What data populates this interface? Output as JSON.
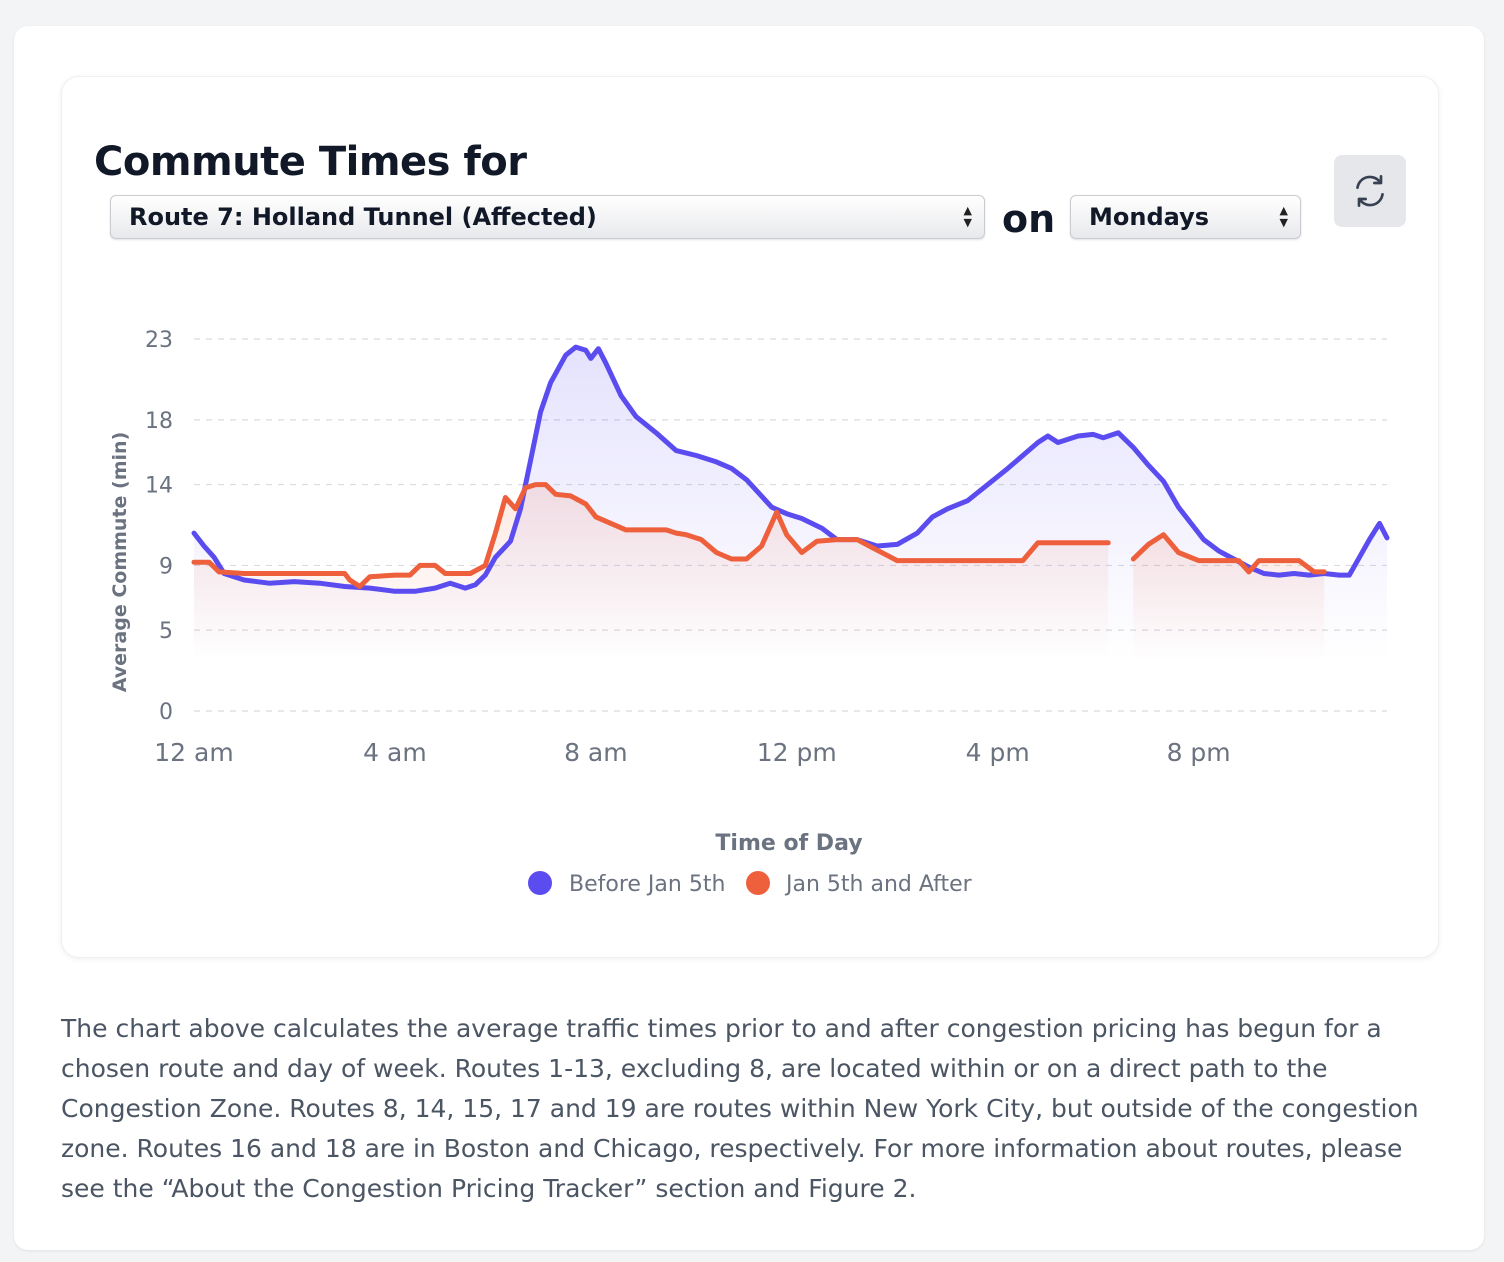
{
  "header": {
    "title": "Commute Times for",
    "route_select_value": "Route 7: Holland Tunnel (Affected)",
    "on_label": "on",
    "day_select_value": "Mondays",
    "refresh_icon": "refresh-icon"
  },
  "description": "The chart above calculates the average traffic times prior to and after congestion pricing has begun for a chosen route and day of week. Routes 1-13, excluding 8, are located within or on a direct path to the Congestion Zone. Routes 8, 14, 15, 17 and 19 are routes within New York City, but outside of the congestion zone. Routes 16 and 18 are in Boston and Chicago, respectively. For more information about routes, please see the “About the Congestion Pricing Tracker” section and Figure 2.",
  "chart_data": {
    "type": "line",
    "xlabel": "Time of Day",
    "ylabel": "Average Commute (min)",
    "x_unit": "hour of day",
    "xlim": [
      0,
      23.75
    ],
    "ylim": [
      0,
      23
    ],
    "y_ticks": [
      0,
      5,
      9,
      14,
      18,
      23
    ],
    "x_ticks": [
      {
        "value": 0,
        "label": "12 am"
      },
      {
        "value": 4,
        "label": "4 am"
      },
      {
        "value": 8,
        "label": "8 am"
      },
      {
        "value": 12,
        "label": "12 pm"
      },
      {
        "value": 16,
        "label": "4 pm"
      },
      {
        "value": 20,
        "label": "8 pm"
      }
    ],
    "grid": true,
    "legend_position": "bottom",
    "series": [
      {
        "name": "Before Jan 5th",
        "color": "#5b4cf0",
        "points": [
          [
            0,
            11.0
          ],
          [
            0.2,
            10.2
          ],
          [
            0.4,
            9.5
          ],
          [
            0.6,
            8.5
          ],
          [
            1.0,
            8.1
          ],
          [
            1.5,
            7.9
          ],
          [
            2.0,
            8.0
          ],
          [
            2.5,
            7.9
          ],
          [
            3.0,
            7.7
          ],
          [
            3.5,
            7.6
          ],
          [
            4.0,
            7.4
          ],
          [
            4.4,
            7.4
          ],
          [
            4.8,
            7.6
          ],
          [
            5.1,
            7.9
          ],
          [
            5.4,
            7.6
          ],
          [
            5.6,
            7.8
          ],
          [
            5.8,
            8.4
          ],
          [
            6.0,
            9.5
          ],
          [
            6.3,
            10.5
          ],
          [
            6.5,
            12.5
          ],
          [
            6.7,
            15.5
          ],
          [
            6.9,
            18.5
          ],
          [
            7.1,
            20.3
          ],
          [
            7.4,
            22.0
          ],
          [
            7.6,
            22.5
          ],
          [
            7.8,
            22.3
          ],
          [
            7.9,
            21.8
          ],
          [
            8.05,
            22.4
          ],
          [
            8.2,
            21.5
          ],
          [
            8.5,
            19.5
          ],
          [
            8.8,
            18.2
          ],
          [
            9.2,
            17.2
          ],
          [
            9.6,
            16.1
          ],
          [
            10.0,
            15.8
          ],
          [
            10.4,
            15.4
          ],
          [
            10.7,
            15.0
          ],
          [
            11.0,
            14.3
          ],
          [
            11.5,
            12.6
          ],
          [
            11.8,
            12.2
          ],
          [
            12.1,
            11.9
          ],
          [
            12.5,
            11.3
          ],
          [
            12.8,
            10.6
          ],
          [
            13.2,
            10.6
          ],
          [
            13.6,
            10.2
          ],
          [
            14.0,
            10.3
          ],
          [
            14.4,
            11.0
          ],
          [
            14.7,
            12.0
          ],
          [
            15.0,
            12.5
          ],
          [
            15.4,
            13.0
          ],
          [
            15.8,
            14.0
          ],
          [
            16.2,
            15.0
          ],
          [
            16.5,
            15.8
          ],
          [
            16.8,
            16.6
          ],
          [
            17.0,
            17.0
          ],
          [
            17.2,
            16.6
          ],
          [
            17.6,
            17.0
          ],
          [
            17.9,
            17.1
          ],
          [
            18.1,
            16.9
          ],
          [
            18.4,
            17.2
          ],
          [
            18.7,
            16.3
          ],
          [
            19.0,
            15.2
          ],
          [
            19.3,
            14.2
          ],
          [
            19.6,
            12.6
          ],
          [
            19.9,
            11.4
          ],
          [
            20.1,
            10.6
          ],
          [
            20.4,
            9.9
          ],
          [
            20.7,
            9.4
          ],
          [
            21.0,
            8.9
          ],
          [
            21.3,
            8.5
          ],
          [
            21.6,
            8.4
          ],
          [
            21.9,
            8.5
          ],
          [
            22.2,
            8.4
          ],
          [
            22.5,
            8.5
          ],
          [
            22.8,
            8.4
          ],
          [
            23.0,
            8.4
          ],
          [
            23.2,
            9.5
          ],
          [
            23.4,
            10.6
          ],
          [
            23.6,
            11.6
          ],
          [
            23.75,
            10.7
          ]
        ]
      },
      {
        "name": "Jan 5th and After",
        "color": "#ee5f3c",
        "points": [
          [
            0,
            9.2
          ],
          [
            0.3,
            9.2
          ],
          [
            0.5,
            8.6
          ],
          [
            1.0,
            8.5
          ],
          [
            1.5,
            8.5
          ],
          [
            2.0,
            8.5
          ],
          [
            2.5,
            8.5
          ],
          [
            3.0,
            8.5
          ],
          [
            3.1,
            8.1
          ],
          [
            3.3,
            7.7
          ],
          [
            3.5,
            8.3
          ],
          [
            4.0,
            8.4
          ],
          [
            4.3,
            8.4
          ],
          [
            4.5,
            9.0
          ],
          [
            4.8,
            9.0
          ],
          [
            5.0,
            8.5
          ],
          [
            5.5,
            8.5
          ],
          [
            5.8,
            9.0
          ],
          [
            6.0,
            11.0
          ],
          [
            6.2,
            13.2
          ],
          [
            6.4,
            12.5
          ],
          [
            6.6,
            13.8
          ],
          [
            6.8,
            14.0
          ],
          [
            7.0,
            14.0
          ],
          [
            7.2,
            13.4
          ],
          [
            7.5,
            13.3
          ],
          [
            7.8,
            12.8
          ],
          [
            8.0,
            12.0
          ],
          [
            8.3,
            11.6
          ],
          [
            8.6,
            11.2
          ],
          [
            9.0,
            11.2
          ],
          [
            9.4,
            11.2
          ],
          [
            9.6,
            11.0
          ],
          [
            9.8,
            10.9
          ],
          [
            10.1,
            10.6
          ],
          [
            10.4,
            9.8
          ],
          [
            10.7,
            9.4
          ],
          [
            11.0,
            9.4
          ],
          [
            11.3,
            10.2
          ],
          [
            11.6,
            12.3
          ],
          [
            11.8,
            10.9
          ],
          [
            12.1,
            9.8
          ],
          [
            12.4,
            10.5
          ],
          [
            12.8,
            10.6
          ],
          [
            13.2,
            10.6
          ],
          [
            13.5,
            10.1
          ],
          [
            14.0,
            9.3
          ],
          [
            14.5,
            9.3
          ],
          [
            15.0,
            9.3
          ],
          [
            15.5,
            9.3
          ],
          [
            16.0,
            9.3
          ],
          [
            16.5,
            9.3
          ],
          [
            16.8,
            10.4
          ],
          [
            17.2,
            10.4
          ],
          [
            17.6,
            10.4
          ],
          [
            18.0,
            10.4
          ],
          [
            18.2,
            10.4
          ],
          null,
          [
            18.7,
            9.4
          ],
          [
            19.0,
            10.3
          ],
          [
            19.3,
            10.9
          ],
          [
            19.6,
            9.8
          ],
          [
            20.0,
            9.3
          ],
          [
            20.4,
            9.3
          ],
          [
            20.8,
            9.3
          ],
          [
            21.0,
            8.6
          ],
          [
            21.2,
            9.3
          ],
          [
            21.5,
            9.3
          ],
          [
            21.8,
            9.3
          ],
          [
            22.0,
            9.3
          ],
          [
            22.3,
            8.6
          ],
          [
            22.5,
            8.6
          ]
        ]
      }
    ]
  }
}
